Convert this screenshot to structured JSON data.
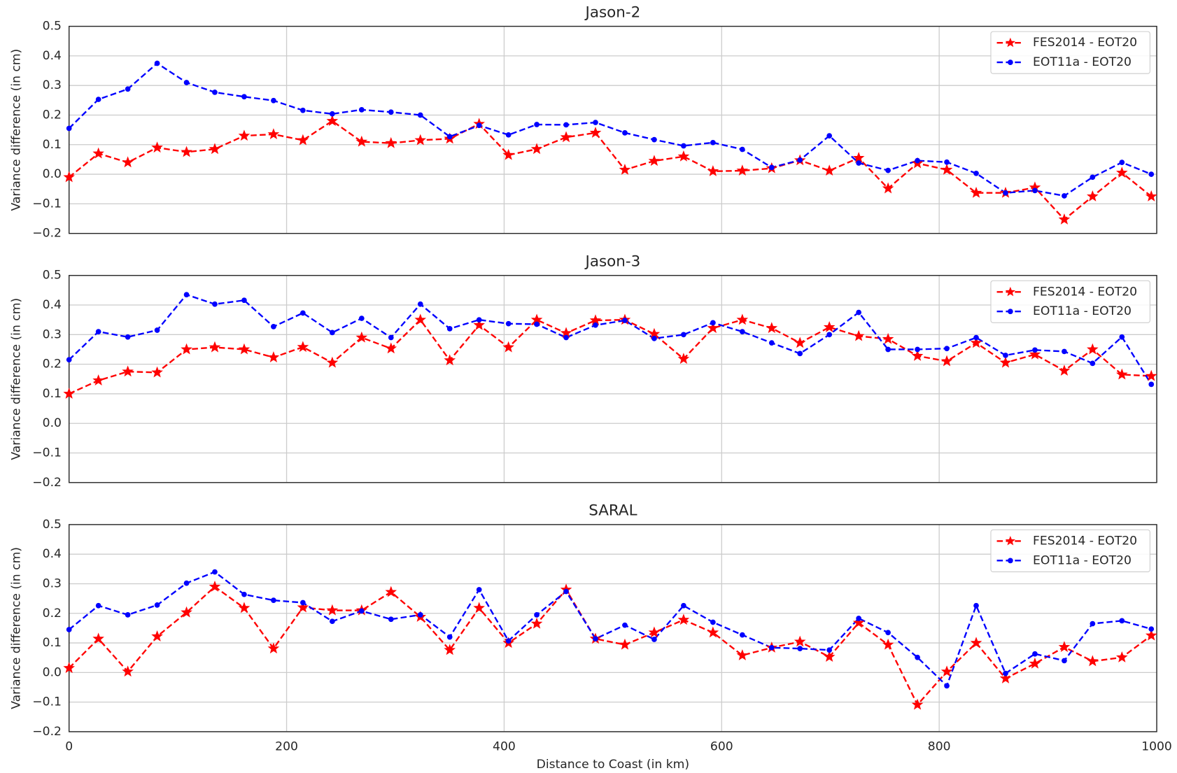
{
  "chart_data": [
    {
      "type": "line",
      "title": "Jason-2",
      "ylabel": "Variance difference (in cm)",
      "x": [
        0,
        27,
        54,
        81,
        108,
        134,
        161,
        188,
        215,
        242,
        269,
        296,
        323,
        350,
        377,
        404,
        430,
        457,
        484,
        511,
        538,
        565,
        592,
        619,
        646,
        672,
        699,
        726,
        753,
        780,
        807,
        834,
        861,
        888,
        915,
        941,
        968,
        995
      ],
      "series": [
        {
          "name": "FES2014 - EOT20",
          "color": "#ff0000",
          "marker": "star",
          "linestyle": "dashed",
          "values": [
            -0.01,
            0.07,
            0.04,
            0.09,
            0.075,
            0.085,
            0.13,
            0.135,
            0.115,
            0.18,
            0.11,
            0.105,
            0.115,
            0.12,
            0.17,
            0.065,
            0.085,
            0.125,
            0.14,
            0.015,
            0.045,
            0.06,
            0.01,
            0.012,
            0.02,
            0.047,
            0.012,
            0.055,
            -0.048,
            0.037,
            0.015,
            -0.063,
            -0.063,
            -0.045,
            -0.153,
            -0.075,
            0.005,
            -0.075
          ]
        },
        {
          "name": "EOT11a - EOT20",
          "color": "#0000ff",
          "marker": "circle",
          "linestyle": "dashed",
          "values": [
            0.155,
            0.253,
            0.288,
            0.375,
            0.31,
            0.277,
            0.262,
            0.249,
            0.216,
            0.204,
            0.218,
            0.21,
            0.2,
            0.127,
            0.165,
            0.133,
            0.168,
            0.167,
            0.175,
            0.14,
            0.117,
            0.096,
            0.107,
            0.084,
            0.023,
            0.048,
            0.13,
            0.038,
            0.013,
            0.046,
            0.041,
            0.003,
            -0.063,
            -0.055,
            -0.073,
            -0.01,
            0.04,
            0.0
          ]
        }
      ],
      "xlim": [
        0,
        1000
      ],
      "xticks": [
        0,
        200,
        400,
        600,
        800,
        1000
      ],
      "show_xtick_labels": false,
      "ylim": [
        -0.2,
        0.5
      ],
      "yticks": [
        {
          "value": -0.2,
          "label": "−0.2"
        },
        {
          "value": -0.1,
          "label": "−0.1"
        },
        {
          "value": 0,
          "label": "0.0"
        },
        0.1,
        0.2,
        0.3,
        0.4,
        0.5
      ],
      "grid": true,
      "legend": "upper right"
    },
    {
      "type": "line",
      "title": "Jason-3",
      "ylabel": "Variance difference (in cm)",
      "x": [
        0,
        27,
        54,
        81,
        108,
        134,
        161,
        188,
        215,
        242,
        269,
        296,
        323,
        350,
        377,
        404,
        430,
        457,
        484,
        511,
        538,
        565,
        592,
        619,
        646,
        672,
        699,
        726,
        753,
        780,
        807,
        834,
        861,
        888,
        915,
        941,
        968,
        995
      ],
      "series": [
        {
          "name": "FES2014 - EOT20",
          "color": "#ff0000",
          "marker": "star",
          "linestyle": "dashed",
          "values": [
            0.1,
            0.145,
            0.175,
            0.172,
            0.25,
            0.257,
            0.25,
            0.223,
            0.258,
            0.205,
            0.29,
            0.253,
            0.35,
            0.213,
            0.332,
            0.257,
            0.35,
            0.305,
            0.348,
            0.35,
            0.302,
            0.218,
            0.322,
            0.35,
            0.322,
            0.272,
            0.325,
            0.295,
            0.285,
            0.228,
            0.21,
            0.272,
            0.205,
            0.233,
            0.178,
            0.25,
            0.165,
            0.16
          ]
        },
        {
          "name": "EOT11a - EOT20",
          "color": "#0000ff",
          "marker": "circle",
          "linestyle": "dashed",
          "values": [
            0.215,
            0.31,
            0.292,
            0.315,
            0.435,
            0.403,
            0.416,
            0.327,
            0.373,
            0.307,
            0.355,
            0.29,
            0.403,
            0.32,
            0.35,
            0.337,
            0.335,
            0.29,
            0.332,
            0.348,
            0.287,
            0.3,
            0.34,
            0.31,
            0.272,
            0.236,
            0.3,
            0.375,
            0.25,
            0.25,
            0.253,
            0.29,
            0.23,
            0.248,
            0.243,
            0.203,
            0.292,
            0.132
          ]
        }
      ],
      "xlim": [
        0,
        1000
      ],
      "xticks": [
        0,
        200,
        400,
        600,
        800,
        1000
      ],
      "show_xtick_labels": false,
      "ylim": [
        -0.2,
        0.5
      ],
      "yticks": [
        {
          "value": -0.2,
          "label": "−0.2"
        },
        {
          "value": -0.1,
          "label": "−0.1"
        },
        {
          "value": 0,
          "label": "0.0"
        },
        0.1,
        0.2,
        0.3,
        0.4,
        0.5
      ],
      "grid": true,
      "legend": "upper right"
    },
    {
      "type": "line",
      "title": "SARAL",
      "ylabel": "Variance difference (in cm)",
      "xlabel": "Distance to Coast (in km)",
      "x": [
        0,
        27,
        54,
        81,
        108,
        134,
        161,
        188,
        215,
        242,
        269,
        296,
        323,
        350,
        377,
        404,
        430,
        457,
        484,
        511,
        538,
        565,
        592,
        619,
        646,
        672,
        699,
        726,
        753,
        780,
        807,
        834,
        861,
        888,
        915,
        941,
        968,
        995
      ],
      "series": [
        {
          "name": "FES2014 - EOT20",
          "color": "#ff0000",
          "marker": "star",
          "linestyle": "dashed",
          "values": [
            0.015,
            0.114,
            0.003,
            0.122,
            0.203,
            0.29,
            0.218,
            0.081,
            0.22,
            0.21,
            0.21,
            0.272,
            0.188,
            0.076,
            0.218,
            0.1,
            0.165,
            0.28,
            0.114,
            0.094,
            0.135,
            0.178,
            0.135,
            0.058,
            0.084,
            0.104,
            0.053,
            0.168,
            0.094,
            -0.109,
            0.003,
            0.1,
            -0.02,
            0.03,
            0.086,
            0.038,
            0.051,
            0.125
          ]
        },
        {
          "name": "EOT11a - EOT20",
          "color": "#0000ff",
          "marker": "circle",
          "linestyle": "dashed",
          "values": [
            0.145,
            0.226,
            0.195,
            0.228,
            0.302,
            0.34,
            0.264,
            0.244,
            0.236,
            0.173,
            0.208,
            0.18,
            0.195,
            0.12,
            0.28,
            0.107,
            0.195,
            0.274,
            0.114,
            0.16,
            0.112,
            0.226,
            0.17,
            0.127,
            0.084,
            0.081,
            0.076,
            0.183,
            0.135,
            0.051,
            -0.045,
            0.226,
            -0.003,
            0.063,
            0.04,
            0.165,
            0.175,
            0.147
          ]
        }
      ],
      "xlim": [
        0,
        1000
      ],
      "xticks": [
        0,
        200,
        400,
        600,
        800,
        1000
      ],
      "show_xtick_labels": true,
      "ylim": [
        -0.2,
        0.5
      ],
      "yticks": [
        {
          "value": -0.2,
          "label": "−0.2"
        },
        {
          "value": -0.1,
          "label": "−0.1"
        },
        {
          "value": 0,
          "label": "0.0"
        },
        0.1,
        0.2,
        0.3,
        0.4,
        0.5
      ],
      "grid": true,
      "legend": "upper right"
    }
  ]
}
